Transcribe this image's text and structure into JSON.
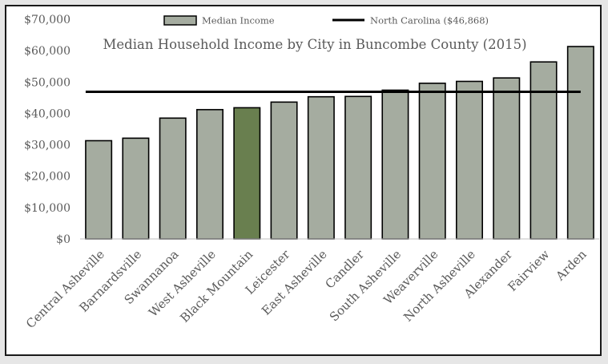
{
  "chart_data": {
    "type": "bar",
    "title": "Median Household Income by City in Buncombe County (2015)",
    "xlabel": "",
    "ylabel": "",
    "ylim": [
      0,
      70000
    ],
    "yticks": [
      0,
      10000,
      20000,
      30000,
      40000,
      50000,
      60000,
      70000
    ],
    "ytick_labels": [
      "$0",
      "$10,000",
      "$20,000",
      "$30,000",
      "$40,000",
      "$50,000",
      "$60,000",
      "$70,000"
    ],
    "grid": false,
    "legend_position": "top",
    "categories": [
      "Central Asheville",
      "Barnardsville",
      "Swannanoa",
      "West Asheville",
      "Black Mountain",
      "Leicester",
      "East Asheville",
      "Candler",
      "South Asheville",
      "Weaverville",
      "North Asheville",
      "Alexander",
      "Fairview",
      "Arden"
    ],
    "series": [
      {
        "name": "Median Income",
        "values": [
          31300,
          32100,
          38500,
          41200,
          41800,
          43600,
          45300,
          45400,
          47400,
          49600,
          50200,
          51300,
          56400,
          61300
        ],
        "color": "#a5aca0",
        "highlight_category": "Black Mountain",
        "highlight_color": "#697f4f"
      }
    ],
    "reference_line": {
      "name": "North Carolina ($46,868)",
      "value": 46868,
      "color": "#000000"
    }
  }
}
